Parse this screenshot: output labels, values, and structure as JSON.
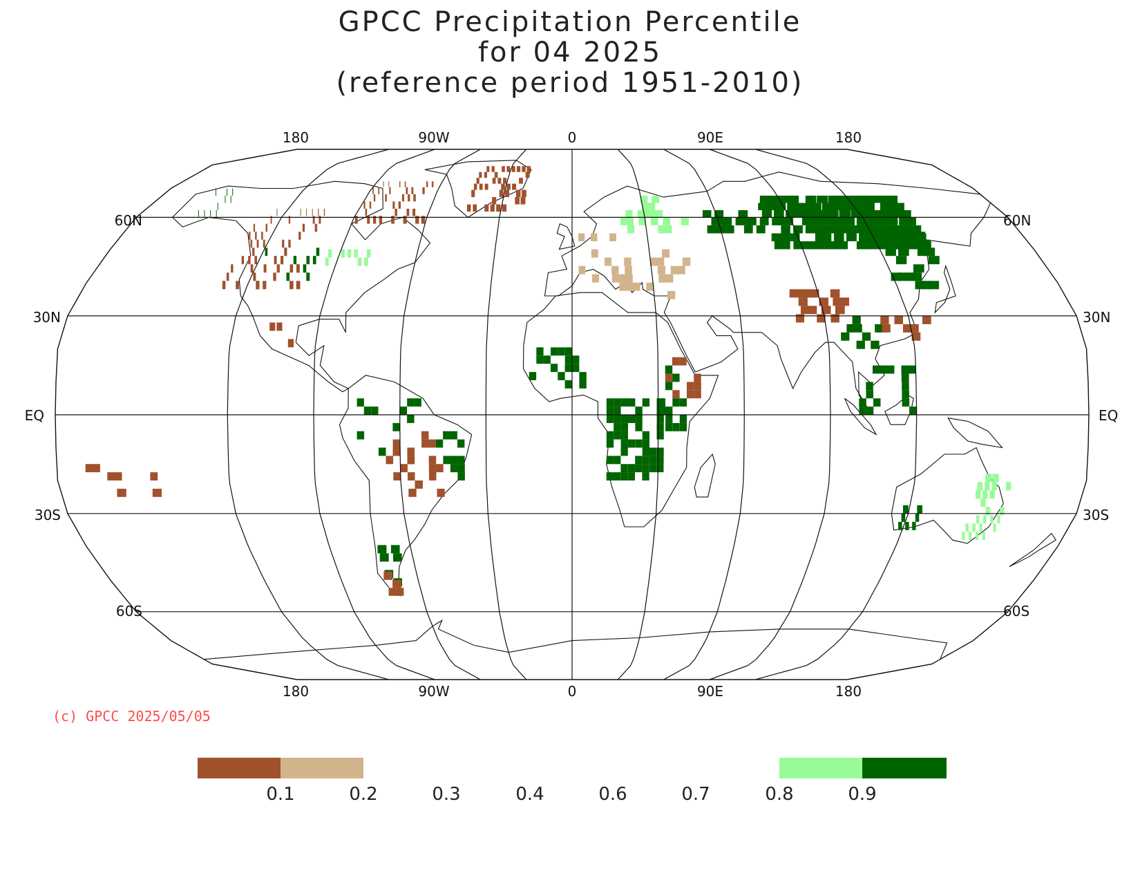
{
  "title": {
    "line1": "GPCC Precipitation Percentile",
    "line2": "for 04 2025",
    "line3": "(reference period 1951-2010)"
  },
  "map": {
    "projection": "Robinson (world)",
    "lon_labels": [
      "180",
      "90W",
      "0",
      "90E",
      "180"
    ],
    "lat_labels": {
      "n60": "60N",
      "n30": "30N",
      "eq": "EQ",
      "s30": "30S",
      "s60": "60S"
    }
  },
  "copyright": "(c) GPCC 2025/05/05",
  "legend": {
    "colors": {
      "very_dry": "#a0522d",
      "dry": "#d2b48c",
      "wet": "#98fb98",
      "very_wet": "#006400"
    },
    "labels": [
      "0.1",
      "0.2",
      "0.3",
      "0.4",
      "0.6",
      "0.7",
      "0.8",
      "0.9"
    ]
  },
  "chart_data": {
    "type": "heatmap",
    "title": "GPCC Precipitation Percentile for 04 2025 (reference period 1951-2010)",
    "value": "precipitation percentile",
    "classes": [
      {
        "range": [
          0.0,
          0.1
        ],
        "color": "#a0522d"
      },
      {
        "range": [
          0.1,
          0.2
        ],
        "color": "#d2b48c"
      },
      {
        "range": [
          0.2,
          0.8
        ],
        "color": "#ffffff"
      },
      {
        "range": [
          0.8,
          0.9
        ],
        "color": "#98fb98"
      },
      {
        "range": [
          0.9,
          1.0
        ],
        "color": "#006400"
      }
    ],
    "regions": [
      {
        "region": "Siberia / northern Asia",
        "class": ">0.9"
      },
      {
        "region": "Central Africa (Congo basin to Angola)",
        "class": ">0.9"
      },
      {
        "region": "Eastern Australia",
        "class": "0.8-0.9"
      },
      {
        "region": "Greenland",
        "class": "<0.1"
      },
      {
        "region": "Canadian Arctic",
        "class": "<0.1"
      },
      {
        "region": "Tibet / western China",
        "class": "<0.1"
      },
      {
        "region": "Central Brazil",
        "class": "<0.1"
      },
      {
        "region": "Southern Patagonia",
        "class": "<0.1"
      }
    ]
  }
}
